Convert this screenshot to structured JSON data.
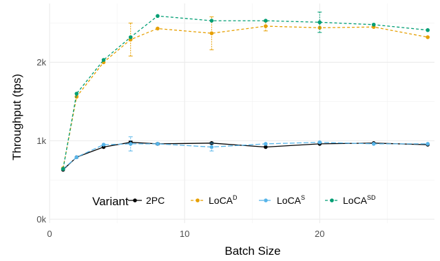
{
  "chart_data": {
    "type": "line",
    "xlabel": "Batch Size",
    "ylabel": "Throughput (tps)",
    "xlim": [
      0,
      28.5
    ],
    "ylim": [
      -50,
      2750
    ],
    "x_ticks": [
      {
        "value": 0,
        "label": "0"
      },
      {
        "value": 10,
        "label": "10"
      },
      {
        "value": 20,
        "label": "20"
      }
    ],
    "y_ticks": [
      {
        "value": 0,
        "label": "0k"
      },
      {
        "value": 1000,
        "label": "1k"
      },
      {
        "value": 2000,
        "label": "2k"
      }
    ],
    "grid": true,
    "legend": {
      "title": "Variant",
      "placement": "bottom-inside"
    },
    "series": [
      {
        "name": "2PC",
        "name_base": "2PC",
        "name_sup": "",
        "color": "#000000",
        "dash": "solid",
        "x": [
          1,
          2,
          4,
          6,
          8,
          12,
          16,
          20,
          24,
          28
        ],
        "y": [
          630,
          790,
          920,
          980,
          960,
          970,
          920,
          960,
          970,
          950
        ],
        "err": [
          0,
          0,
          0,
          15,
          10,
          10,
          0,
          0,
          0,
          0
        ]
      },
      {
        "name": "LoCAD",
        "name_base": "LoCA",
        "name_sup": "D",
        "color": "#E69F00",
        "dash": "dashed",
        "x": [
          1,
          2,
          4,
          6,
          8,
          12,
          16,
          20,
          24,
          28
        ],
        "y": [
          650,
          1560,
          2000,
          2290,
          2430,
          2370,
          2460,
          2440,
          2450,
          2320
        ],
        "err": [
          0,
          0,
          0,
          210,
          0,
          210,
          60,
          0,
          0,
          0
        ]
      },
      {
        "name": "LoCAS",
        "name_base": "LoCA",
        "name_sup": "S",
        "color": "#56B4E9",
        "dash": "longdash",
        "x": [
          1,
          2,
          4,
          6,
          8,
          12,
          16,
          20,
          24,
          28
        ],
        "y": [
          640,
          790,
          950,
          960,
          960,
          920,
          960,
          980,
          960,
          960
        ],
        "err": [
          0,
          0,
          0,
          90,
          0,
          50,
          0,
          0,
          0,
          0
        ]
      },
      {
        "name": "LoCASD",
        "name_base": "LoCA",
        "name_sup": "SD",
        "color": "#009E73",
        "dash": "dashed",
        "x": [
          1,
          2,
          4,
          6,
          8,
          12,
          16,
          20,
          24,
          28
        ],
        "y": [
          640,
          1600,
          2030,
          2320,
          2590,
          2530,
          2530,
          2510,
          2480,
          2410
        ],
        "err": [
          0,
          0,
          0,
          0,
          0,
          0,
          0,
          130,
          0,
          0
        ]
      }
    ]
  }
}
